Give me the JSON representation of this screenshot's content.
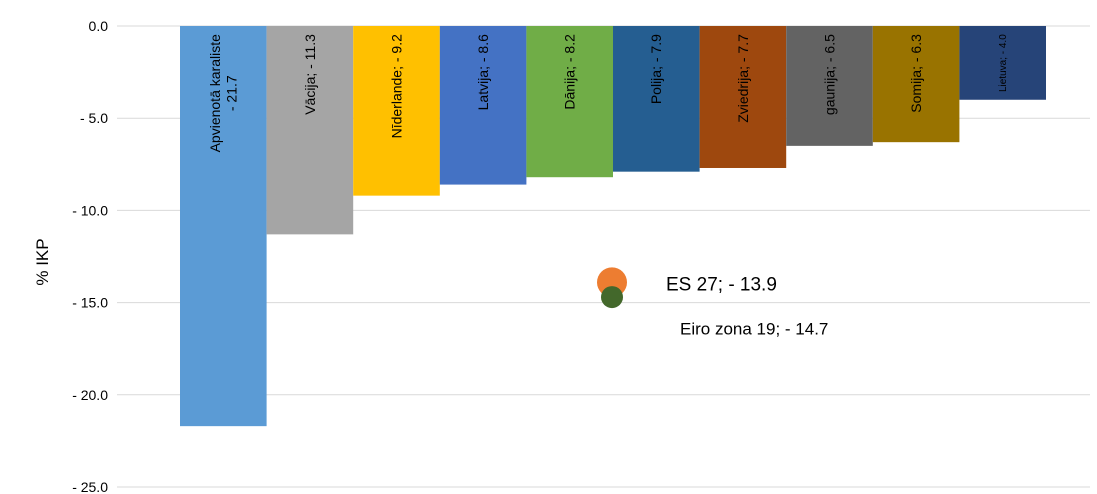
{
  "chart_data": {
    "type": "bar",
    "y_label": "% IKP",
    "values": [
      -21.7,
      -11.3,
      -9.2,
      -8.6,
      -8.2,
      -7.9,
      -7.7,
      -6.5,
      -6.3,
      -4.0
    ],
    "value_labels": [
      "Apvienotā karaliste\n- 21.7",
      "Vācija; - 11.3",
      "Nīderlande; - 9.2",
      "Latvija; - 8.6",
      "Dānija; - 8.2",
      "Polija; - 7.9",
      "Zviedrija; - 7.7",
      "gaunija; - 6.5",
      "Somija; - 6.3",
      "Lietuva; - 4.0"
    ],
    "colors": [
      "#5b9bd5",
      "#a5a5a5",
      "#ffc000",
      "#4472c4",
      "#70ad47",
      "#255e91",
      "#9e480e",
      "#636363",
      "#997300",
      "#264478"
    ],
    "points": [
      {
        "name": "ES 27",
        "color": "#ed7d31",
        "value": -13.9,
        "label": "ES 27; - 13.9"
      },
      {
        "name": "Eiro zona 19",
        "color": "#43682b",
        "value": -14.7,
        "label": "Eiro zona 19; - 14.7"
      }
    ],
    "ylim": [
      -25,
      0
    ],
    "yticks": [
      {
        "value": 0,
        "label": "0.0"
      },
      {
        "value": -5,
        "label": "- 5.0"
      },
      {
        "value": -10,
        "label": "- 10.0"
      },
      {
        "value": -15,
        "label": "- 15.0"
      },
      {
        "value": -20,
        "label": "- 20.0"
      },
      {
        "value": -25,
        "label": "- 25.0"
      }
    ],
    "grid": true
  }
}
